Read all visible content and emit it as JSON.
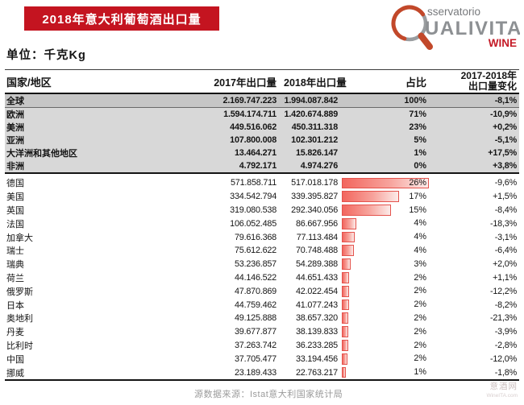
{
  "banner": {
    "title": "2018年意大利葡萄酒出口量"
  },
  "logo": {
    "line1": "sservatorio",
    "line2": "UALIVITA",
    "line3": "WINE"
  },
  "unit_label": "单位：千克Kg",
  "columns": {
    "region": "国家/地区",
    "y2017": "2017年出口量",
    "y2018": "2018年出口量",
    "share": "占比",
    "change_line1": "2017-2018年",
    "change_line2": "出口量变化"
  },
  "colors": {
    "banner_red": "#c41420",
    "region_row_bg": "#d8d8d8",
    "global_row_bg": "#c6c6c6",
    "bar_border": "#e4534d",
    "bar_fill_start": "#f2665e",
    "bar_fill_end": "#fcebe9",
    "logo_gray": "#8d9093",
    "logo_orange": "#c2482a",
    "wine_red": "#c41a26"
  },
  "chart_data": {
    "type": "table",
    "title": "2018年意大利葡萄酒出口量",
    "unit": "千克Kg",
    "columns": [
      "国家/地区",
      "2017年出口量",
      "2018年出口量",
      "占比",
      "2017-2018年出口量变化"
    ],
    "bar_column": "占比",
    "bar_note": "country rows show a red gradient data bar proportional to 2018 export volume",
    "region_rows": [
      {
        "name": "全球",
        "y2017": "2.169.747.223",
        "y2018": "1.994.087.842",
        "share": "100%",
        "change": "-8,1%"
      },
      {
        "name": "欧洲",
        "y2017": "1.594.174.711",
        "y2018": "1.420.674.889",
        "share": "71%",
        "change": "-10,9%"
      },
      {
        "name": "美洲",
        "y2017": "449.516.062",
        "y2018": "450.311.318",
        "share": "23%",
        "change": "+0,2%"
      },
      {
        "name": "亚洲",
        "y2017": "107.800.008",
        "y2018": "102.301.212",
        "share": "5%",
        "change": "-5,1%"
      },
      {
        "name": "大洋洲和其他地区",
        "y2017": "13.464.271",
        "y2018": "15.826.147",
        "share": "1%",
        "change": "+17,5%"
      },
      {
        "name": "非洲",
        "y2017": "4.792.171",
        "y2018": "4.974.276",
        "share": "0%",
        "change": "+3,8%"
      }
    ],
    "country_rows": [
      {
        "name": "德国",
        "y2017": "571.858.711",
        "y2018": "517.018.178",
        "share": "26%",
        "change": "-9,6%"
      },
      {
        "name": "美国",
        "y2017": "334.542.794",
        "y2018": "339.395.827",
        "share": "17%",
        "change": "+1,5%"
      },
      {
        "name": "英国",
        "y2017": "319.080.538",
        "y2018": "292.340.056",
        "share": "15%",
        "change": "-8,4%"
      },
      {
        "name": "法国",
        "y2017": "106.052.485",
        "y2018": "86.667.956",
        "share": "4%",
        "change": "-18,3%"
      },
      {
        "name": "加拿大",
        "y2017": "79.616.368",
        "y2018": "77.113.484",
        "share": "4%",
        "change": "-3,1%"
      },
      {
        "name": "瑞士",
        "y2017": "75.612.622",
        "y2018": "70.748.488",
        "share": "4%",
        "change": "-6,4%"
      },
      {
        "name": "瑞典",
        "y2017": "53.236.857",
        "y2018": "54.289.388",
        "share": "3%",
        "change": "+2,0%"
      },
      {
        "name": "荷兰",
        "y2017": "44.146.522",
        "y2018": "44.651.433",
        "share": "2%",
        "change": "+1,1%"
      },
      {
        "name": "俄罗斯",
        "y2017": "47.870.869",
        "y2018": "42.022.454",
        "share": "2%",
        "change": "-12,2%"
      },
      {
        "name": "日本",
        "y2017": "44.759.462",
        "y2018": "41.077.243",
        "share": "2%",
        "change": "-8,2%"
      },
      {
        "name": "奥地利",
        "y2017": "49.125.888",
        "y2018": "38.657.320",
        "share": "2%",
        "change": "-21,3%"
      },
      {
        "name": "丹麦",
        "y2017": "39.677.877",
        "y2018": "38.139.833",
        "share": "2%",
        "change": "-3,9%"
      },
      {
        "name": "比利时",
        "y2017": "37.263.742",
        "y2018": "36.233.285",
        "share": "2%",
        "change": "-2,8%"
      },
      {
        "name": "中国",
        "y2017": "37.705.477",
        "y2018": "33.194.456",
        "share": "2%",
        "change": "-12,0%"
      },
      {
        "name": "挪威",
        "y2017": "23.189.433",
        "y2018": "22.763.217",
        "share": "1%",
        "change": "-1,8%"
      }
    ]
  },
  "footer": {
    "source": "源数据来源：Istat意大利国家统计局",
    "watermark_cn": "意酒网",
    "watermark_en": "WineITA.com"
  }
}
